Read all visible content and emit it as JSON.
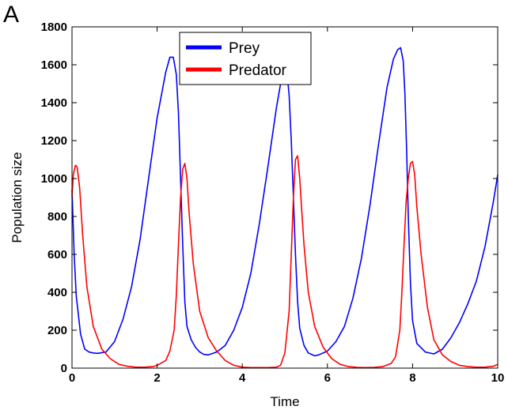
{
  "panel_label": "A",
  "chart_data": {
    "type": "line",
    "title": "",
    "xlabel": "Time",
    "ylabel": "Population size",
    "xlim": [
      0,
      10
    ],
    "ylim": [
      0,
      1800
    ],
    "xticks": [
      0,
      2,
      4,
      6,
      8,
      10
    ],
    "yticks": [
      0,
      200,
      400,
      600,
      800,
      1000,
      1200,
      1400,
      1600,
      1800
    ],
    "grid": false,
    "legend_position": "top-center",
    "series": [
      {
        "name": "Prey",
        "color": "#0000ff",
        "x": [
          0.0,
          0.05,
          0.1,
          0.2,
          0.3,
          0.4,
          0.5,
          0.6,
          0.8,
          1.0,
          1.2,
          1.4,
          1.6,
          1.8,
          2.0,
          2.2,
          2.3,
          2.38,
          2.45,
          2.5,
          2.55,
          2.6,
          2.65,
          2.7,
          2.8,
          2.9,
          3.0,
          3.1,
          3.2,
          3.4,
          3.6,
          3.8,
          4.0,
          4.2,
          4.4,
          4.6,
          4.8,
          4.9,
          5.0,
          5.05,
          5.1,
          5.15,
          5.2,
          5.25,
          5.3,
          5.35,
          5.45,
          5.55,
          5.7,
          5.8,
          6.0,
          6.2,
          6.4,
          6.6,
          6.8,
          7.0,
          7.2,
          7.4,
          7.55,
          7.65,
          7.72,
          7.78,
          7.82,
          7.86,
          7.9,
          7.95,
          8.0,
          8.1,
          8.3,
          8.5,
          8.7,
          8.9,
          9.1,
          9.3,
          9.5,
          9.7,
          9.9,
          10.0
        ],
        "y": [
          940,
          600,
          380,
          180,
          100,
          85,
          80,
          78,
          85,
          140,
          260,
          430,
          680,
          1000,
          1320,
          1560,
          1640,
          1640,
          1550,
          1350,
          1000,
          650,
          350,
          220,
          150,
          110,
          85,
          72,
          70,
          85,
          120,
          200,
          320,
          500,
          760,
          1060,
          1370,
          1500,
          1560,
          1560,
          1440,
          1200,
          900,
          600,
          350,
          210,
          120,
          80,
          65,
          70,
          90,
          140,
          220,
          370,
          580,
          860,
          1180,
          1480,
          1630,
          1680,
          1690,
          1620,
          1450,
          1150,
          800,
          450,
          250,
          130,
          85,
          75,
          100,
          160,
          240,
          340,
          460,
          640,
          880,
          1020
        ]
      },
      {
        "name": "Predator",
        "color": "#ff0000",
        "x": [
          0.0,
          0.03,
          0.08,
          0.12,
          0.18,
          0.25,
          0.35,
          0.5,
          0.7,
          0.9,
          1.1,
          1.3,
          1.5,
          1.7,
          1.9,
          2.0,
          2.2,
          2.3,
          2.4,
          2.45,
          2.5,
          2.55,
          2.6,
          2.65,
          2.7,
          2.75,
          2.85,
          3.0,
          3.2,
          3.4,
          3.6,
          3.8,
          4.0,
          4.2,
          4.4,
          4.6,
          4.8,
          4.9,
          5.0,
          5.1,
          5.15,
          5.2,
          5.25,
          5.3,
          5.35,
          5.4,
          5.45,
          5.55,
          5.7,
          5.9,
          6.1,
          6.3,
          6.5,
          6.7,
          6.9,
          7.1,
          7.3,
          7.5,
          7.6,
          7.7,
          7.75,
          7.8,
          7.85,
          7.9,
          7.95,
          8.0,
          8.05,
          8.1,
          8.2,
          8.35,
          8.5,
          8.7,
          8.9,
          9.1,
          9.3,
          9.5,
          9.7,
          9.9,
          10.0
        ],
        "y": [
          900,
          1020,
          1070,
          1060,
          950,
          700,
          430,
          220,
          100,
          50,
          20,
          10,
          5,
          5,
          8,
          15,
          40,
          90,
          200,
          380,
          650,
          900,
          1050,
          1080,
          1000,
          820,
          550,
          300,
          160,
          90,
          40,
          15,
          5,
          3,
          3,
          3,
          5,
          15,
          80,
          300,
          600,
          900,
          1100,
          1120,
          1000,
          820,
          650,
          400,
          220,
          110,
          50,
          20,
          8,
          4,
          3,
          4,
          8,
          25,
          60,
          200,
          400,
          650,
          880,
          1000,
          1080,
          1090,
          1020,
          850,
          600,
          320,
          150,
          70,
          35,
          15,
          8,
          5,
          5,
          10,
          20
        ]
      }
    ]
  }
}
